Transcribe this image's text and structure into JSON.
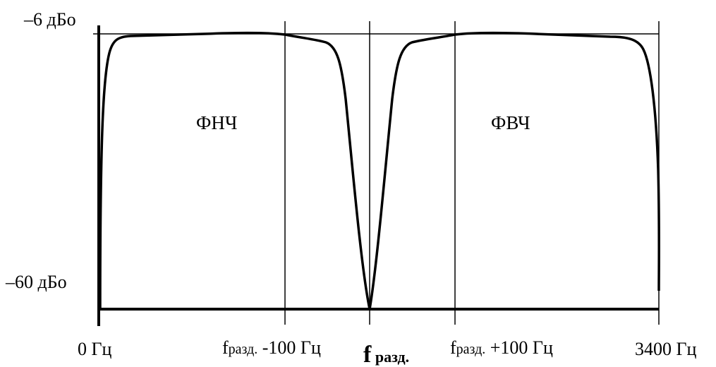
{
  "y_axis": {
    "top_label": "–6 дБо",
    "bottom_label": "–60 дБо"
  },
  "x_axis": {
    "start_label": "0 Гц",
    "end_label": "3400 Гц",
    "left_mark": {
      "main": "f",
      "sub": "разд.",
      "suffix": " -100 Гц"
    },
    "right_mark": {
      "main": "f",
      "sub": "разд.",
      "suffix": " +100 Гц"
    },
    "center_mark": {
      "main": "f",
      "sub": " разд."
    }
  },
  "bands": {
    "low": "ФНЧ",
    "high": "ФВЧ"
  },
  "colors": {
    "line": "#000000",
    "background": "#ffffff"
  }
}
